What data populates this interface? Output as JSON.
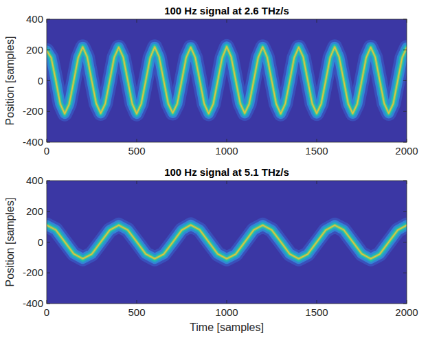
{
  "chart_data": [
    {
      "type": "line",
      "title": "100 Hz signal at 2.6 THz/s",
      "ylabel": "Position [samples]",
      "color": "#1fb3b8",
      "x": [
        0,
        25,
        50,
        75,
        100,
        125,
        150,
        175,
        200,
        225,
        250,
        275,
        300,
        325,
        350,
        375,
        400,
        425,
        450,
        475,
        500,
        525,
        550,
        575,
        600,
        625,
        650,
        675,
        700,
        725,
        750,
        775,
        800,
        825,
        850,
        875,
        900,
        925,
        950,
        975,
        1000,
        1025,
        1050,
        1075,
        1100,
        1125,
        1150,
        1175,
        1200,
        1225,
        1250,
        1275,
        1300,
        1325,
        1350,
        1375,
        1400,
        1425,
        1450,
        1475,
        1500,
        1525,
        1550,
        1575,
        1600,
        1625,
        1650,
        1675,
        1700,
        1725,
        1750,
        1775,
        1800,
        1825,
        1850,
        1875,
        1900,
        1925,
        1950,
        1975,
        2000
      ],
      "values": [
        195,
        150,
        5,
        -150,
        -215,
        -152,
        -3,
        150,
        220,
        155,
        2,
        -148,
        -212,
        -150,
        0,
        152,
        218,
        153,
        3,
        -150,
        -215,
        -151,
        -2,
        150,
        220,
        154,
        2,
        -149,
        -210,
        -150,
        0,
        151,
        218,
        152,
        4,
        -150,
        -214,
        -152,
        -2,
        150,
        222,
        155,
        3,
        -148,
        -212,
        -150,
        0,
        151,
        220,
        153,
        2,
        -150,
        -215,
        -151,
        -3,
        150,
        218,
        154,
        3,
        -149,
        -213,
        -150,
        0,
        152,
        220,
        153,
        2,
        -150,
        -214,
        -151,
        -2,
        150,
        218,
        154,
        3,
        -148,
        -212,
        -150,
        0,
        151,
        215
      ],
      "xlim": [
        0,
        2000
      ],
      "ylim": [
        -400,
        400
      ],
      "xticks": [
        0,
        500,
        1000,
        1500,
        2000
      ],
      "yticks": [
        -400,
        -200,
        0,
        200,
        400
      ],
      "grid": false
    },
    {
      "type": "line",
      "title": "100 Hz signal at 5.1 THz/s",
      "xlabel": "Time [samples]",
      "ylabel": "Position [samples]",
      "color": "#1fb3b8",
      "x": [
        0,
        50,
        100,
        150,
        200,
        250,
        300,
        350,
        400,
        450,
        500,
        550,
        600,
        650,
        700,
        750,
        800,
        850,
        900,
        950,
        1000,
        1050,
        1100,
        1150,
        1200,
        1250,
        1300,
        1350,
        1400,
        1450,
        1500,
        1550,
        1600,
        1650,
        1700,
        1750,
        1800,
        1850,
        1900,
        1950,
        2000
      ],
      "values": [
        110,
        80,
        2,
        -76,
        -108,
        -78,
        0,
        78,
        110,
        79,
        2,
        -77,
        -108,
        -78,
        -1,
        78,
        112,
        80,
        1,
        -77,
        -108,
        -78,
        0,
        79,
        110,
        79,
        2,
        -77,
        -108,
        -78,
        0,
        78,
        110,
        80,
        2,
        -76,
        -108,
        -78,
        0,
        78,
        110
      ],
      "xlim": [
        0,
        2000
      ],
      "ylim": [
        -400,
        400
      ],
      "xticks": [
        0,
        500,
        1000,
        1500,
        2000
      ],
      "yticks": [
        -400,
        -200,
        0,
        200,
        400
      ],
      "grid": false
    }
  ]
}
